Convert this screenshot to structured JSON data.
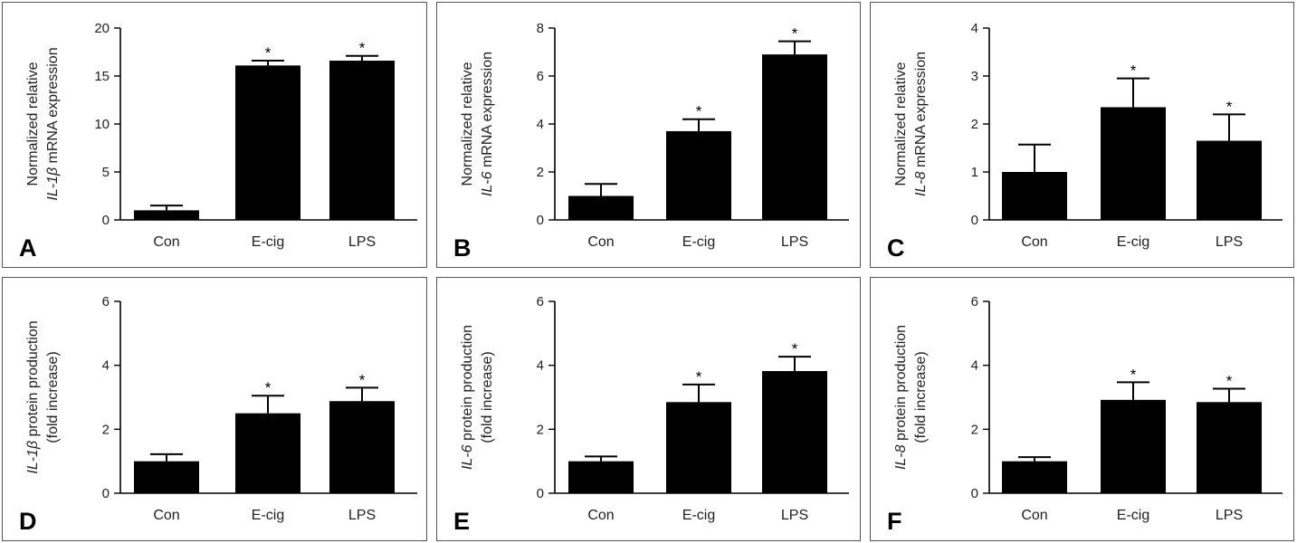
{
  "chart_data": [
    {
      "panel": "A",
      "type": "bar",
      "ylabel_line1": [
        {
          "t": "Normalized relative",
          "i": false
        }
      ],
      "ylabel_line2": [
        {
          "t": "IL-1β",
          "i": true
        },
        {
          "t": " mRNA expression",
          "i": false
        }
      ],
      "categories": [
        "Con",
        "E-cig",
        "LPS"
      ],
      "values": [
        1.0,
        16.1,
        16.6
      ],
      "errors": [
        0.5,
        0.5,
        0.5
      ],
      "significance": [
        "",
        "*",
        "*"
      ],
      "ylim": [
        0,
        20
      ],
      "yticks": [
        0,
        5,
        10,
        15,
        20
      ]
    },
    {
      "panel": "B",
      "type": "bar",
      "ylabel_line1": [
        {
          "t": "Normalized relative",
          "i": false
        }
      ],
      "ylabel_line2": [
        {
          "t": "IL-6",
          "i": true
        },
        {
          "t": " mRNA expression",
          "i": false
        }
      ],
      "categories": [
        "Con",
        "E-cig",
        "LPS"
      ],
      "values": [
        1.0,
        3.7,
        6.9
      ],
      "errors": [
        0.5,
        0.5,
        0.55
      ],
      "significance": [
        "",
        "*",
        "*"
      ],
      "ylim": [
        0,
        8
      ],
      "yticks": [
        0,
        2,
        4,
        6,
        8
      ]
    },
    {
      "panel": "C",
      "type": "bar",
      "ylabel_line1": [
        {
          "t": "Normalized relative",
          "i": false
        }
      ],
      "ylabel_line2": [
        {
          "t": "IL-8",
          "i": true
        },
        {
          "t": " mRNA expression",
          "i": false
        }
      ],
      "categories": [
        "Con",
        "E-cig",
        "LPS"
      ],
      "values": [
        1.0,
        2.35,
        1.65
      ],
      "errors": [
        0.57,
        0.6,
        0.55
      ],
      "significance": [
        "",
        "*",
        "*"
      ],
      "ylim": [
        0,
        4
      ],
      "yticks": [
        0,
        1,
        2,
        3,
        4
      ]
    },
    {
      "panel": "D",
      "type": "bar",
      "ylabel_line1": [
        {
          "t": "IL-1β",
          "i": true
        },
        {
          "t": " protein production",
          "i": false
        }
      ],
      "ylabel_line2": [
        {
          "t": "(fold increase)",
          "i": false
        }
      ],
      "categories": [
        "Con",
        "E-cig",
        "LPS"
      ],
      "values": [
        1.0,
        2.5,
        2.88
      ],
      "errors": [
        0.22,
        0.55,
        0.42
      ],
      "significance": [
        "",
        "*",
        "*"
      ],
      "ylim": [
        0,
        6
      ],
      "yticks": [
        0,
        2,
        4,
        6
      ]
    },
    {
      "panel": "E",
      "type": "bar",
      "ylabel_line1": [
        {
          "t": "IL-6",
          "i": true
        },
        {
          "t": " protein production",
          "i": false
        }
      ],
      "ylabel_line2": [
        {
          "t": "(fold increase)",
          "i": false
        }
      ],
      "categories": [
        "Con",
        "E-cig",
        "LPS"
      ],
      "values": [
        1.0,
        2.85,
        3.82
      ],
      "errors": [
        0.15,
        0.55,
        0.45
      ],
      "significance": [
        "",
        "*",
        "*"
      ],
      "ylim": [
        0,
        6
      ],
      "yticks": [
        0,
        2,
        4,
        6
      ]
    },
    {
      "panel": "F",
      "type": "bar",
      "ylabel_line1": [
        {
          "t": "IL-8",
          "i": true
        },
        {
          "t": " protein production",
          "i": false
        }
      ],
      "ylabel_line2": [
        {
          "t": "(fold increase)",
          "i": false
        }
      ],
      "categories": [
        "Con",
        "E-cig",
        "LPS"
      ],
      "values": [
        1.0,
        2.92,
        2.85
      ],
      "errors": [
        0.13,
        0.55,
        0.42
      ],
      "significance": [
        "",
        "*",
        "*"
      ],
      "ylim": [
        0,
        6
      ],
      "yticks": [
        0,
        2,
        4,
        6
      ]
    }
  ]
}
